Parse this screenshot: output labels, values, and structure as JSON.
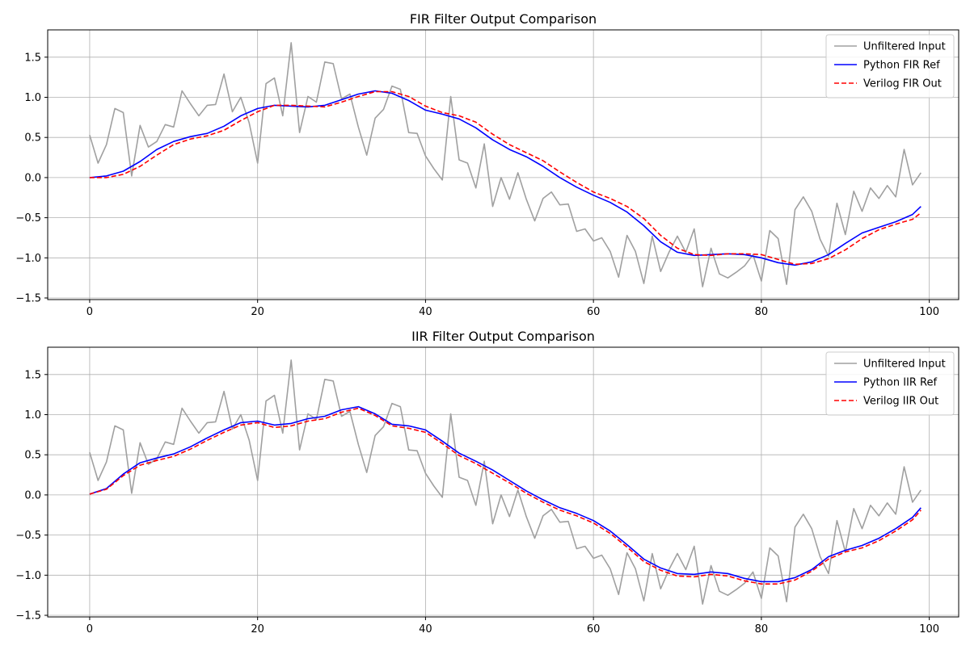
{
  "chart_data": [
    {
      "type": "line",
      "title": "FIR Filter Output Comparison",
      "xlim": [
        -5,
        103.5
      ],
      "ylim": [
        -1.52,
        1.84
      ],
      "x_ticks": [
        0,
        20,
        40,
        60,
        80,
        100
      ],
      "y_ticks": [
        -1.5,
        -1.0,
        -0.5,
        0.0,
        0.5,
        1.0,
        1.5
      ],
      "x_tick_labels": [
        "0",
        "20",
        "40",
        "60",
        "80",
        "100"
      ],
      "y_tick_labels": [
        "−1.5",
        "−1.0",
        "−0.5",
        "0.0",
        "0.5",
        "1.0",
        "1.5"
      ],
      "grid": true,
      "legend_position": "top-right",
      "series": [
        {
          "name": "Unfiltered Input",
          "color": "#a0a0a0",
          "style": "solid",
          "x": [
            0,
            1,
            2,
            3,
            4,
            5,
            6,
            7,
            8,
            9,
            10,
            11,
            12,
            13,
            14,
            15,
            16,
            17,
            18,
            19,
            20,
            21,
            22,
            23,
            24,
            25,
            26,
            27,
            28,
            29,
            30,
            31,
            32,
            33,
            34,
            35,
            36,
            37,
            38,
            39,
            40,
            41,
            42,
            43,
            44,
            45,
            46,
            47,
            48,
            49,
            50,
            51,
            52,
            53,
            54,
            55,
            56,
            57,
            58,
            59,
            60,
            61,
            62,
            63,
            64,
            65,
            66,
            67,
            68,
            69,
            70,
            71,
            72,
            73,
            74,
            75,
            76,
            77,
            78,
            79,
            80,
            81,
            82,
            83,
            84,
            85,
            86,
            87,
            88,
            89,
            90,
            91,
            92,
            93,
            94,
            95,
            96,
            97,
            98,
            99
          ],
          "y": [
            0.53,
            0.18,
            0.41,
            0.86,
            0.81,
            0.02,
            0.65,
            0.38,
            0.45,
            0.66,
            0.63,
            1.08,
            0.92,
            0.77,
            0.9,
            0.91,
            1.29,
            0.82,
            1.0,
            0.68,
            0.18,
            1.17,
            1.24,
            0.77,
            1.68,
            0.56,
            1.01,
            0.94,
            1.44,
            1.42,
            0.98,
            1.04,
            0.63,
            0.28,
            0.74,
            0.85,
            1.14,
            1.1,
            0.56,
            0.55,
            0.27,
            0.11,
            -0.03,
            1.01,
            0.22,
            0.18,
            -0.13,
            0.42,
            -0.36,
            0.0,
            -0.27,
            0.06,
            -0.27,
            -0.54,
            -0.26,
            -0.18,
            -0.34,
            -0.33,
            -0.67,
            -0.64,
            -0.79,
            -0.75,
            -0.92,
            -1.24,
            -0.72,
            -0.92,
            -1.32,
            -0.73,
            -1.17,
            -0.93,
            -0.73,
            -0.93,
            -0.64,
            -1.36,
            -0.88,
            -1.2,
            -1.25,
            -1.18,
            -1.1,
            -0.96,
            -1.29,
            -0.66,
            -0.76,
            -1.33,
            -0.4,
            -0.24,
            -0.42,
            -0.77,
            -0.98,
            -0.32,
            -0.71,
            -0.17,
            -0.42,
            -0.13,
            -0.26,
            -0.1,
            -0.24,
            0.35,
            -0.09,
            0.06
          ]
        },
        {
          "name": "Python FIR Ref",
          "color": "#0000ff",
          "style": "solid",
          "x": [
            0,
            2,
            4,
            6,
            8,
            10,
            12,
            14,
            16,
            18,
            20,
            22,
            24,
            26,
            28,
            30,
            32,
            34,
            36,
            38,
            40,
            42,
            44,
            46,
            48,
            50,
            52,
            54,
            56,
            58,
            60,
            62,
            64,
            66,
            68,
            70,
            72,
            74,
            76,
            78,
            80,
            82,
            84,
            86,
            88,
            90,
            92,
            94,
            96,
            98,
            99
          ],
          "y": [
            0.0,
            0.02,
            0.08,
            0.2,
            0.35,
            0.45,
            0.51,
            0.55,
            0.64,
            0.77,
            0.86,
            0.9,
            0.89,
            0.88,
            0.9,
            0.97,
            1.04,
            1.08,
            1.05,
            0.96,
            0.84,
            0.79,
            0.73,
            0.62,
            0.47,
            0.35,
            0.26,
            0.14,
            0.0,
            -0.12,
            -0.22,
            -0.31,
            -0.43,
            -0.6,
            -0.8,
            -0.93,
            -0.97,
            -0.96,
            -0.95,
            -0.96,
            -1.0,
            -1.06,
            -1.09,
            -1.05,
            -0.96,
            -0.82,
            -0.69,
            -0.62,
            -0.55,
            -0.46,
            -0.36
          ]
        },
        {
          "name": "Verilog FIR Out",
          "color": "#ff0000",
          "style": "dashed",
          "x": [
            0,
            2,
            4,
            6,
            8,
            10,
            12,
            14,
            16,
            18,
            20,
            22,
            24,
            26,
            28,
            30,
            32,
            34,
            36,
            38,
            40,
            42,
            44,
            46,
            48,
            50,
            52,
            54,
            56,
            58,
            60,
            62,
            64,
            66,
            68,
            70,
            72,
            74,
            76,
            78,
            80,
            82,
            84,
            86,
            88,
            90,
            92,
            94,
            96,
            98,
            99
          ],
          "y": [
            0.0,
            0.0,
            0.04,
            0.14,
            0.28,
            0.41,
            0.48,
            0.52,
            0.59,
            0.71,
            0.82,
            0.9,
            0.9,
            0.89,
            0.88,
            0.94,
            1.01,
            1.07,
            1.07,
            1.01,
            0.89,
            0.81,
            0.77,
            0.69,
            0.54,
            0.41,
            0.31,
            0.21,
            0.07,
            -0.06,
            -0.18,
            -0.26,
            -0.36,
            -0.51,
            -0.72,
            -0.88,
            -0.96,
            -0.97,
            -0.95,
            -0.95,
            -0.96,
            -1.02,
            -1.08,
            -1.07,
            -1.01,
            -0.9,
            -0.76,
            -0.65,
            -0.58,
            -0.52,
            -0.44
          ]
        }
      ]
    },
    {
      "type": "line",
      "title": "IIR Filter Output Comparison",
      "xlim": [
        -5,
        103.5
      ],
      "ylim": [
        -1.52,
        1.84
      ],
      "x_ticks": [
        0,
        20,
        40,
        60,
        80,
        100
      ],
      "y_ticks": [
        -1.5,
        -1.0,
        -0.5,
        0.0,
        0.5,
        1.0,
        1.5
      ],
      "x_tick_labels": [
        "0",
        "20",
        "40",
        "60",
        "80",
        "100"
      ],
      "y_tick_labels": [
        "−1.5",
        "−1.0",
        "−0.5",
        "0.0",
        "0.5",
        "1.0",
        "1.5"
      ],
      "grid": true,
      "legend_position": "top-right",
      "series": [
        {
          "name": "Unfiltered Input",
          "color": "#a0a0a0",
          "style": "solid",
          "x": [
            0,
            1,
            2,
            3,
            4,
            5,
            6,
            7,
            8,
            9,
            10,
            11,
            12,
            13,
            14,
            15,
            16,
            17,
            18,
            19,
            20,
            21,
            22,
            23,
            24,
            25,
            26,
            27,
            28,
            29,
            30,
            31,
            32,
            33,
            34,
            35,
            36,
            37,
            38,
            39,
            40,
            41,
            42,
            43,
            44,
            45,
            46,
            47,
            48,
            49,
            50,
            51,
            52,
            53,
            54,
            55,
            56,
            57,
            58,
            59,
            60,
            61,
            62,
            63,
            64,
            65,
            66,
            67,
            68,
            69,
            70,
            71,
            72,
            73,
            74,
            75,
            76,
            77,
            78,
            79,
            80,
            81,
            82,
            83,
            84,
            85,
            86,
            87,
            88,
            89,
            90,
            91,
            92,
            93,
            94,
            95,
            96,
            97,
            98,
            99
          ],
          "y": [
            0.53,
            0.18,
            0.41,
            0.86,
            0.81,
            0.02,
            0.65,
            0.38,
            0.45,
            0.66,
            0.63,
            1.08,
            0.92,
            0.77,
            0.9,
            0.91,
            1.29,
            0.82,
            1.0,
            0.68,
            0.18,
            1.17,
            1.24,
            0.77,
            1.68,
            0.56,
            1.01,
            0.94,
            1.44,
            1.42,
            0.98,
            1.04,
            0.63,
            0.28,
            0.74,
            0.85,
            1.14,
            1.1,
            0.56,
            0.55,
            0.27,
            0.11,
            -0.03,
            1.01,
            0.22,
            0.18,
            -0.13,
            0.42,
            -0.36,
            0.0,
            -0.27,
            0.06,
            -0.27,
            -0.54,
            -0.26,
            -0.18,
            -0.34,
            -0.33,
            -0.67,
            -0.64,
            -0.79,
            -0.75,
            -0.92,
            -1.24,
            -0.72,
            -0.92,
            -1.32,
            -0.73,
            -1.17,
            -0.93,
            -0.73,
            -0.93,
            -0.64,
            -1.36,
            -0.88,
            -1.2,
            -1.25,
            -1.18,
            -1.1,
            -0.96,
            -1.29,
            -0.66,
            -0.76,
            -1.33,
            -0.4,
            -0.24,
            -0.42,
            -0.77,
            -0.98,
            -0.32,
            -0.71,
            -0.17,
            -0.42,
            -0.13,
            -0.26,
            -0.1,
            -0.24,
            0.35,
            -0.09,
            0.06
          ]
        },
        {
          "name": "Python IIR Ref",
          "color": "#0000ff",
          "style": "solid",
          "x": [
            0,
            2,
            4,
            6,
            8,
            10,
            12,
            14,
            16,
            18,
            20,
            22,
            24,
            26,
            28,
            30,
            32,
            34,
            36,
            38,
            40,
            42,
            44,
            46,
            48,
            50,
            52,
            54,
            56,
            58,
            60,
            62,
            64,
            66,
            68,
            70,
            72,
            74,
            76,
            78,
            80,
            82,
            84,
            86,
            88,
            90,
            92,
            94,
            96,
            98,
            99
          ],
          "y": [
            0.01,
            0.08,
            0.26,
            0.4,
            0.46,
            0.51,
            0.6,
            0.71,
            0.81,
            0.9,
            0.92,
            0.87,
            0.89,
            0.95,
            0.98,
            1.06,
            1.1,
            1.01,
            0.88,
            0.86,
            0.81,
            0.67,
            0.52,
            0.42,
            0.31,
            0.18,
            0.05,
            -0.06,
            -0.16,
            -0.23,
            -0.32,
            -0.45,
            -0.62,
            -0.8,
            -0.91,
            -0.98,
            -0.99,
            -0.96,
            -0.98,
            -1.04,
            -1.08,
            -1.08,
            -1.03,
            -0.93,
            -0.77,
            -0.69,
            -0.63,
            -0.54,
            -0.42,
            -0.28,
            -0.16
          ]
        },
        {
          "name": "Verilog IIR Out",
          "color": "#ff0000",
          "style": "dashed",
          "x": [
            0,
            2,
            4,
            6,
            8,
            10,
            12,
            14,
            16,
            18,
            20,
            22,
            24,
            26,
            28,
            30,
            32,
            34,
            36,
            38,
            40,
            42,
            44,
            46,
            48,
            50,
            52,
            54,
            56,
            58,
            60,
            62,
            64,
            66,
            68,
            70,
            72,
            74,
            76,
            78,
            80,
            82,
            84,
            86,
            88,
            90,
            92,
            94,
            96,
            98,
            99
          ],
          "y": [
            0.01,
            0.07,
            0.24,
            0.37,
            0.43,
            0.48,
            0.57,
            0.68,
            0.78,
            0.87,
            0.9,
            0.84,
            0.86,
            0.92,
            0.95,
            1.03,
            1.08,
            0.99,
            0.86,
            0.83,
            0.78,
            0.64,
            0.49,
            0.39,
            0.27,
            0.15,
            0.02,
            -0.09,
            -0.19,
            -0.26,
            -0.35,
            -0.48,
            -0.65,
            -0.83,
            -0.94,
            -1.01,
            -1.02,
            -0.99,
            -1.01,
            -1.07,
            -1.11,
            -1.11,
            -1.06,
            -0.95,
            -0.8,
            -0.71,
            -0.66,
            -0.57,
            -0.45,
            -0.31,
            -0.19
          ]
        }
      ]
    }
  ]
}
